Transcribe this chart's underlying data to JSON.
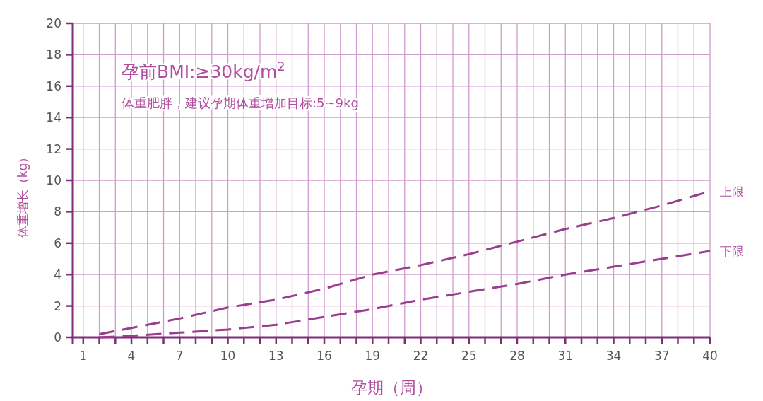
{
  "chart_data": {
    "type": "line",
    "title": "孕前BMI:≥30kg/m$^{2}$",
    "subtitle": "体重肥胖，建议孕期体重增加目标:5~9kg",
    "xlabel": "孕期（周）",
    "ylabel": "体重增长（kg）",
    "x": [
      2,
      4,
      7,
      10,
      13,
      16,
      19,
      22,
      25,
      28,
      31,
      34,
      37,
      40
    ],
    "series": [
      {
        "name": "上限",
        "color": "#9b3d8e",
        "values": [
          0.2,
          0.6,
          1.2,
          1.9,
          2.4,
          3.1,
          4.0,
          4.6,
          5.3,
          6.1,
          6.9,
          7.6,
          8.4,
          9.3
        ]
      },
      {
        "name": "下限",
        "color": "#9b3d8e",
        "values": [
          0,
          0.1,
          0.3,
          0.5,
          0.8,
          1.3,
          1.8,
          2.4,
          2.9,
          3.4,
          4.0,
          4.5,
          5.0,
          5.5
        ]
      }
    ],
    "xlim": [
      0.35,
      40
    ],
    "ylim": [
      0,
      20
    ],
    "xticks": [
      1,
      {
        "value": 2,
        "label": null
      },
      {
        "value": 3,
        "label": null
      },
      4,
      {
        "value": 5,
        "label": null
      },
      {
        "value": 6,
        "label": null
      },
      7,
      {
        "value": 8,
        "label": null
      },
      {
        "value": 9,
        "label": null
      },
      10,
      {
        "value": 11,
        "label": null
      },
      {
        "value": 12,
        "label": null
      },
      13,
      {
        "value": 14,
        "label": null
      },
      {
        "value": 15,
        "label": null
      },
      16,
      {
        "value": 17,
        "label": null
      },
      {
        "value": 18,
        "label": null
      },
      19,
      {
        "value": 20,
        "label": null
      },
      {
        "value": 21,
        "label": null
      },
      22,
      {
        "value": 23,
        "label": null
      },
      {
        "value": 24,
        "label": null
      },
      25,
      {
        "value": 26,
        "label": null
      },
      {
        "value": 27,
        "label": null
      },
      28,
      {
        "value": 29,
        "label": null
      },
      {
        "value": 30,
        "label": null
      },
      31,
      {
        "value": 32,
        "label": null
      },
      {
        "value": 33,
        "label": null
      },
      34,
      {
        "value": 35,
        "label": null
      },
      {
        "value": 36,
        "label": null
      },
      37,
      {
        "value": 38,
        "label": null
      },
      {
        "value": 39,
        "label": null
      },
      40
    ],
    "yticks": [
      0,
      2,
      4,
      6,
      8,
      10,
      12,
      14,
      16,
      18,
      20
    ],
    "grid": true,
    "line_style": "dashed"
  }
}
